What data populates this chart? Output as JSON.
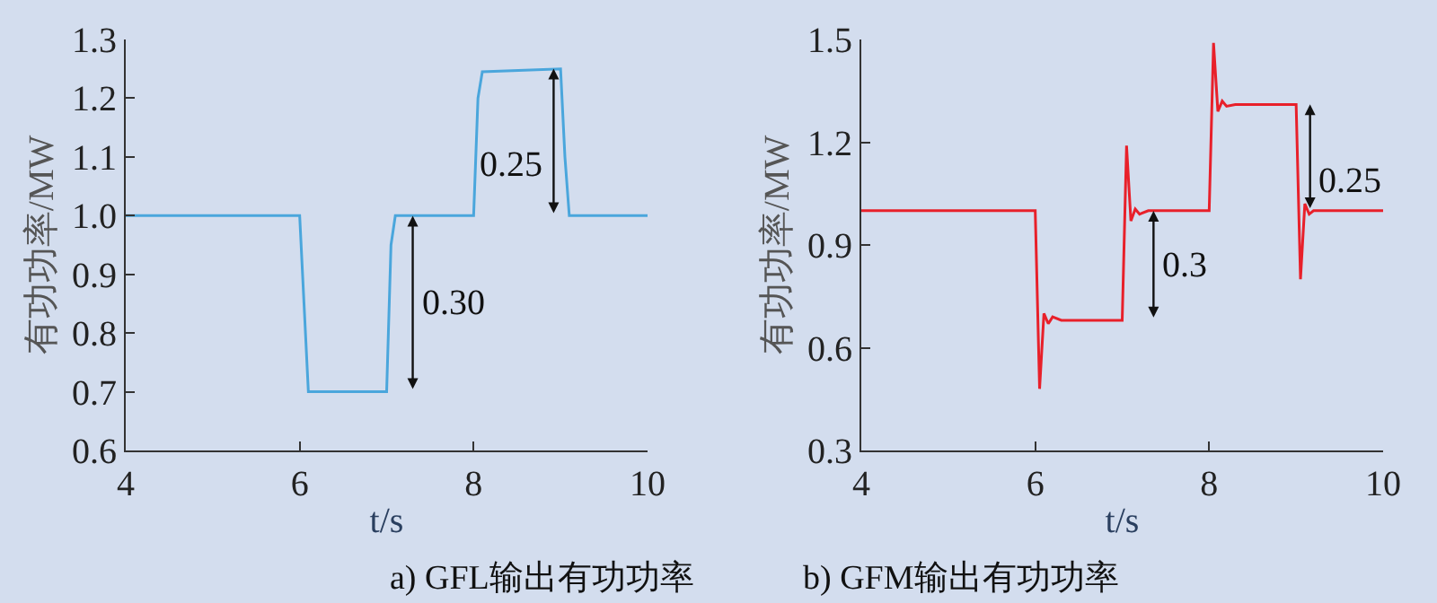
{
  "chart_data": [
    {
      "type": "line",
      "title": "a) GFL输出有功功率",
      "xlabel": "t/s",
      "ylabel": "有功功率/MW",
      "xlim": [
        4,
        10
      ],
      "xticks": [
        4,
        6,
        8,
        10
      ],
      "ylim": [
        0.6,
        1.3
      ],
      "yticks": [
        0.6,
        0.7,
        0.8,
        0.9,
        {
          "value": 1.0,
          "label": "1.0"
        },
        1.1,
        1.2,
        1.3
      ],
      "grid": false,
      "series": [
        {
          "color": "#4aa6dc",
          "x": [
            4,
            6.0,
            6.05,
            6.1,
            7.0,
            7.05,
            7.1,
            8.0,
            8.05,
            8.1,
            9.0,
            9.05,
            9.1,
            10
          ],
          "values": [
            1.0,
            1.0,
            0.85,
            0.7,
            0.7,
            0.95,
            1.0,
            1.0,
            1.2,
            1.245,
            1.25,
            1.1,
            1.0,
            1.0
          ]
        }
      ],
      "annotations": [
        "0.30",
        "0.25"
      ]
    },
    {
      "type": "line",
      "title": "b) GFM输出有功功率",
      "xlabel": "t/s",
      "ylabel": "有功功率/MW",
      "xlim": [
        4,
        10
      ],
      "xticks": [
        4,
        6,
        8,
        10
      ],
      "ylim": [
        0.3,
        1.5
      ],
      "yticks": [
        0.3,
        0.6,
        0.9,
        1.2,
        1.5
      ],
      "grid": false,
      "series": [
        {
          "color": "#e8202a",
          "x": [
            4,
            6.0,
            6.05,
            6.1,
            6.15,
            6.2,
            6.3,
            7.0,
            7.05,
            7.1,
            7.15,
            7.2,
            7.3,
            8.0,
            8.05,
            8.1,
            8.15,
            8.2,
            8.3,
            9.0,
            9.05,
            9.1,
            9.15,
            9.2,
            10
          ],
          "values": [
            1.0,
            1.0,
            0.48,
            0.7,
            0.67,
            0.69,
            0.68,
            0.68,
            1.19,
            0.97,
            1.005,
            0.99,
            1.0,
            1.0,
            1.49,
            1.29,
            1.32,
            1.305,
            1.31,
            1.31,
            0.8,
            1.02,
            0.99,
            1.0,
            1.0
          ]
        }
      ],
      "annotations": [
        "0.3",
        "0.25"
      ]
    }
  ]
}
